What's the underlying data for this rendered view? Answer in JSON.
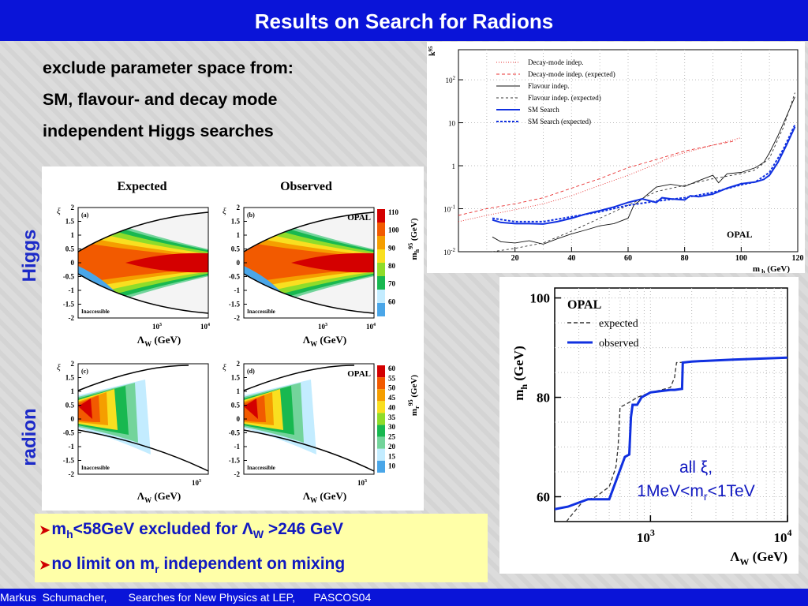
{
  "slide": {
    "title": "Results on Search for Radions",
    "intro": [
      "exclude parameter space from:",
      "SM, flavour- and decay mode",
      "independent Higgs searches"
    ],
    "side_labels": {
      "higgs": "Higgs",
      "radion": "radion"
    },
    "bullets": [
      {
        "parts": [
          "m",
          "h",
          "<58GeV excluded for ",
          "Λ",
          "W",
          " >246 GeV"
        ]
      },
      {
        "parts": [
          "no limit on m",
          "r",
          " independent on mixing"
        ]
      }
    ],
    "annotation": {
      "line1": "all ξ,",
      "line2": [
        "1MeV<m",
        "r",
        "<1TeV"
      ]
    },
    "footer": "Markus  Schumacher,       Searches for New Physics at LEP,      PASCOS04",
    "colors": {
      "title_bg": "#0a14d8",
      "bullet_bg": "#ffffa8",
      "accent_text": "#1018c0",
      "arrow": "#d00000"
    }
  },
  "contour_figure": {
    "col_titles": [
      "Expected",
      "Observed"
    ],
    "panel_tags": [
      "(a)",
      "(b)",
      "(c)",
      "(d)"
    ],
    "opal_label": "OPAL",
    "inaccessible_label": "Inaccessible",
    "xi_symbol": "ξ",
    "y_ticks": [
      "2",
      "1.5",
      "1",
      "0.5",
      "0",
      "-0.5",
      "-1",
      "-1.5",
      "-2"
    ],
    "x_ticks_top": [
      "10",
      "3",
      "10",
      "4"
    ],
    "x_ticks_bottom": [
      "10",
      "3"
    ],
    "xlabel": [
      "Λ",
      "W",
      " (GeV)"
    ],
    "higgs_scale": {
      "label": [
        "m",
        "h",
        "95",
        " (GeV)"
      ],
      "ticks": [
        "110",
        "100",
        "90",
        "80",
        "70",
        "60"
      ]
    },
    "radion_scale": {
      "label": [
        "m",
        "r",
        "95",
        " (GeV)"
      ],
      "ticks": [
        "60",
        "55",
        "50",
        "45",
        "40",
        "35",
        "30",
        "25",
        "20",
        "15",
        "10"
      ]
    },
    "colors": [
      "#d40000",
      "#f25a00",
      "#f59e00",
      "#f9df20",
      "#8fdc2a",
      "#18b850",
      "#73d49b",
      "#c3ecff",
      "#4aa6e8"
    ]
  },
  "chart_data": [
    {
      "type": "line",
      "title": "",
      "xlabel": "m h (GeV)",
      "ylabel": "k 95",
      "xlim": [
        0,
        120
      ],
      "ylim": [
        0.01,
        500
      ],
      "yscale": "log",
      "x_ticks": [
        "20",
        "40",
        "60",
        "80",
        "100",
        "120"
      ],
      "y_ticks": [
        "10",
        "2",
        "10",
        "1",
        "10⁻¹",
        "10⁻²"
      ],
      "y_tick_parts": [
        [
          "10",
          "2"
        ],
        [
          "10",
          ""
        ],
        [
          "1",
          ""
        ],
        [
          "10",
          "-1"
        ],
        [
          "10",
          "-2"
        ]
      ],
      "legend_position": "top",
      "plot_label": "OPAL",
      "series": [
        {
          "name": "Decay-mode indep.",
          "color": "#e83030",
          "dash": "1,2",
          "x": [
            0,
            10,
            20,
            30,
            40,
            50,
            60,
            70,
            75,
            80,
            90,
            100
          ],
          "y": [
            0.05,
            0.07,
            0.095,
            0.13,
            0.2,
            0.35,
            0.6,
            1.1,
            1.6,
            2.0,
            3.0,
            4.5
          ]
        },
        {
          "name": "Decay-mode indep. (expected)",
          "color": "#e83030",
          "dash": "4,3",
          "x": [
            0,
            10,
            20,
            30,
            40,
            50,
            60,
            70,
            80,
            90,
            98
          ],
          "y": [
            0.07,
            0.1,
            0.13,
            0.18,
            0.3,
            0.5,
            0.9,
            1.4,
            2.2,
            3.0,
            3.8
          ]
        },
        {
          "name": "Flavour indep.",
          "color": "#111111",
          "dash": "",
          "x": [
            12,
            15,
            20,
            25,
            30,
            35,
            40,
            45,
            50,
            55,
            60,
            62,
            65,
            70,
            75,
            80,
            85,
            90,
            92,
            95,
            100,
            105,
            108,
            110,
            113,
            116,
            119
          ],
          "y": [
            0.022,
            0.017,
            0.016,
            0.018,
            0.015,
            0.02,
            0.026,
            0.032,
            0.04,
            0.045,
            0.06,
            0.12,
            0.17,
            0.32,
            0.37,
            0.33,
            0.45,
            0.6,
            0.4,
            0.65,
            0.7,
            0.9,
            1.2,
            2.0,
            5.0,
            14,
            40
          ]
        },
        {
          "name": "Flavour indep. (expected)",
          "color": "#333333",
          "dash": "3,3",
          "x": [
            12,
            20,
            30,
            40,
            50,
            60,
            70,
            80,
            90,
            100,
            105,
            110,
            115,
            119
          ],
          "y": [
            0.01,
            0.012,
            0.016,
            0.03,
            0.06,
            0.12,
            0.25,
            0.35,
            0.5,
            0.65,
            0.8,
            1.5,
            8,
            50
          ]
        },
        {
          "name": "SM Search",
          "color": "#1030e0",
          "dash": "",
          "x": [
            12,
            15,
            20,
            25,
            30,
            35,
            40,
            45,
            50,
            55,
            60,
            65,
            70,
            72,
            75,
            80,
            82,
            85,
            90,
            95,
            100,
            105,
            108,
            110,
            113,
            116,
            119
          ],
          "y": [
            0.055,
            0.048,
            0.045,
            0.045,
            0.044,
            0.05,
            0.06,
            0.075,
            0.09,
            0.11,
            0.14,
            0.17,
            0.14,
            0.18,
            0.17,
            0.16,
            0.2,
            0.19,
            0.22,
            0.3,
            0.38,
            0.42,
            0.48,
            0.6,
            1.2,
            3.0,
            8.0
          ]
        },
        {
          "name": "SM Search (expected)",
          "color": "#1030e0",
          "dash": "3,2",
          "x": [
            12,
            20,
            30,
            40,
            50,
            60,
            70,
            80,
            90,
            100,
            105,
            110,
            115,
            119
          ],
          "y": [
            0.06,
            0.05,
            0.05,
            0.065,
            0.085,
            0.12,
            0.15,
            0.18,
            0.24,
            0.36,
            0.42,
            0.7,
            2.5,
            9.0
          ]
        }
      ]
    },
    {
      "type": "line",
      "title": "",
      "xlabel": "Λ W (GeV)",
      "ylabel": "m h (GeV)",
      "xlim": [
        200,
        10000
      ],
      "ylim": [
        55,
        102
      ],
      "xscale": "log",
      "y_ticks": [
        "100",
        "80",
        "60"
      ],
      "x_ticks": [
        [
          "10",
          "3"
        ],
        [
          "10",
          "4"
        ]
      ],
      "legend_position": "top-left",
      "plot_label": "OPAL",
      "series": [
        {
          "name": "expected",
          "color": "#333333",
          "dash": "5,3",
          "x": [
            200,
            260,
            320,
            400,
            500,
            560,
            580,
            600,
            650,
            700,
            750,
            800,
            1000,
            1200,
            1400,
            1500,
            1550,
            1600,
            2000,
            4000,
            10000
          ],
          "y": [
            52,
            56,
            59,
            60,
            62,
            66,
            70,
            78,
            78.5,
            79,
            79.5,
            80,
            81,
            81.5,
            82,
            84,
            87,
            87,
            87.2,
            87.6,
            88
          ]
        },
        {
          "name": "observed",
          "color": "#1030e0",
          "dash": "",
          "x": [
            200,
            250,
            350,
            450,
            500,
            650,
            700,
            720,
            740,
            800,
            860,
            1000,
            1400,
            1500,
            1700,
            1720,
            2000,
            4000,
            10000
          ],
          "y": [
            57.5,
            58,
            59.5,
            59.5,
            59.5,
            68,
            68.5,
            76,
            78.5,
            78.5,
            80,
            81,
            81.5,
            81.5,
            81.7,
            87,
            87.2,
            87.6,
            88
          ]
        }
      ]
    }
  ]
}
